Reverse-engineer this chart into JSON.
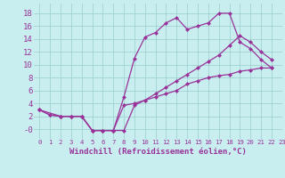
{
  "curve1_x": [
    0,
    1,
    2,
    3,
    4,
    5,
    6,
    7,
    8,
    9,
    10,
    11,
    12,
    13,
    14,
    15,
    16,
    17,
    18,
    19,
    20,
    21,
    22
  ],
  "curve1_y": [
    3,
    2.2,
    2.0,
    2.0,
    2.0,
    -0.2,
    -0.2,
    -0.2,
    5.0,
    11.0,
    14.3,
    15.0,
    16.5,
    17.3,
    15.5,
    16.0,
    16.5,
    18.0,
    18.0,
    13.5,
    12.5,
    10.8,
    9.5
  ],
  "curve2_x": [
    0,
    1,
    2,
    3,
    4,
    5,
    6,
    7,
    8,
    9,
    10,
    11,
    12,
    13,
    14,
    15,
    16,
    17,
    18,
    19,
    20,
    21,
    22
  ],
  "curve2_y": [
    3,
    2.2,
    2.0,
    2.0,
    2.0,
    -0.2,
    -0.2,
    -0.2,
    3.7,
    4.0,
    4.5,
    5.0,
    5.5,
    6.0,
    7.0,
    7.5,
    8.0,
    8.3,
    8.5,
    9.0,
    9.2,
    9.5,
    9.5
  ],
  "curve3_x": [
    0,
    2,
    3,
    4,
    5,
    6,
    7,
    8,
    9,
    10,
    11,
    12,
    13,
    14,
    15,
    16,
    17,
    18,
    19,
    20,
    21,
    22
  ],
  "curve3_y": [
    3,
    2.0,
    2.0,
    2.0,
    -0.2,
    -0.2,
    -0.2,
    -0.2,
    3.7,
    4.5,
    5.5,
    6.5,
    7.5,
    8.5,
    9.5,
    10.5,
    11.5,
    13.0,
    14.5,
    13.5,
    12.0,
    10.8
  ],
  "color": "#993399",
  "bg_color": "#c8eef0",
  "grid_color": "#99cccc",
  "xlabel": "Windchill (Refroidissement éolien,°C)",
  "ylim": [
    -1.5,
    19.5
  ],
  "xlim": [
    -0.5,
    23
  ],
  "yticks": [
    0,
    2,
    4,
    6,
    8,
    10,
    12,
    14,
    16,
    18
  ],
  "ytick_labels": [
    "-0",
    "2",
    "4",
    "6",
    "8",
    "10",
    "12",
    "14",
    "16",
    "18"
  ],
  "xticks": [
    0,
    1,
    2,
    3,
    4,
    5,
    6,
    7,
    8,
    9,
    10,
    11,
    12,
    13,
    14,
    15,
    16,
    17,
    18,
    19,
    20,
    21,
    22,
    23
  ],
  "marker": "D",
  "markersize": 2.5,
  "linewidth": 0.9,
  "font_size": 6.5
}
